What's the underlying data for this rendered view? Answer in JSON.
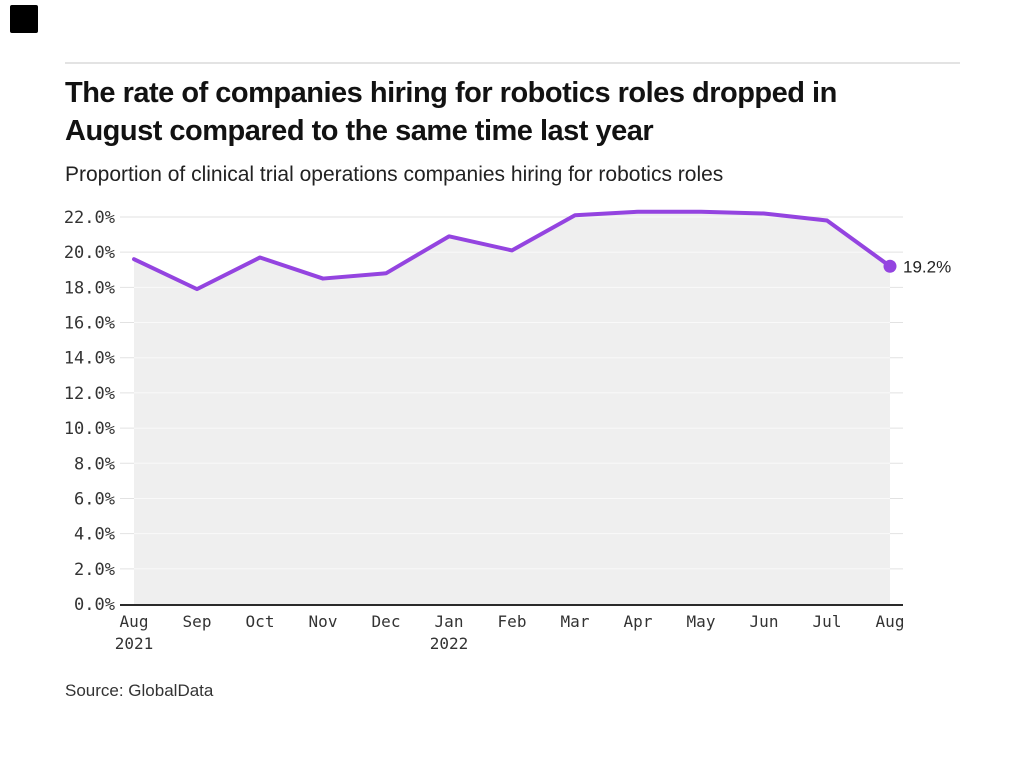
{
  "header": {
    "logo_icon": "black-square-logo",
    "logo_color": "#000000",
    "title_line1": "The rate of companies hiring for robotics roles dropped in",
    "title_line2": "August compared to the same time last year",
    "subtitle": "Proportion of clinical trial operations companies hiring for robotics roles"
  },
  "footer": {
    "source": "Source: GlobalData"
  },
  "chart_data": {
    "type": "line",
    "title": "The rate of companies hiring for robotics roles dropped in August compared to the same time last year",
    "subtitle": "Proportion of clinical trial operations companies hiring for robotics roles",
    "categories": [
      "Aug 2021",
      "Sep",
      "Oct",
      "Nov",
      "Dec",
      "Jan 2022",
      "Feb",
      "Mar",
      "Apr",
      "May",
      "Jun",
      "Jul",
      "Aug"
    ],
    "x_months": [
      "Aug",
      "Sep",
      "Oct",
      "Nov",
      "Dec",
      "Jan",
      "Feb",
      "Mar",
      "Apr",
      "May",
      "Jun",
      "Jul",
      "Aug"
    ],
    "x_years": [
      {
        "index": 0,
        "label": "2021"
      },
      {
        "index": 5,
        "label": "2022"
      }
    ],
    "values": [
      19.6,
      17.9,
      19.7,
      18.5,
      18.8,
      20.9,
      20.1,
      22.1,
      22.3,
      22.3,
      22.2,
      21.8,
      19.2
    ],
    "unit": "%",
    "ylim": [
      0,
      22
    ],
    "ytick_step": 2,
    "ytick_labels": [
      "0.0%",
      "2.0%",
      "4.0%",
      "6.0%",
      "8.0%",
      "10.0%",
      "12.0%",
      "14.0%",
      "16.0%",
      "18.0%",
      "20.0%",
      "22.0%"
    ],
    "end_label": "19.2%",
    "grid": true,
    "legend": "none",
    "area_fill_under_line": true,
    "colors": {
      "line": "#9444e0",
      "area_fill": "#efefef",
      "gridline": "#e2e2e2",
      "gridline_on_fill": "#f9f9f9",
      "axis": "#2a2a2a",
      "tick_text": "#333333",
      "annotation_text": "#222222"
    },
    "source": "Source: GlobalData"
  }
}
